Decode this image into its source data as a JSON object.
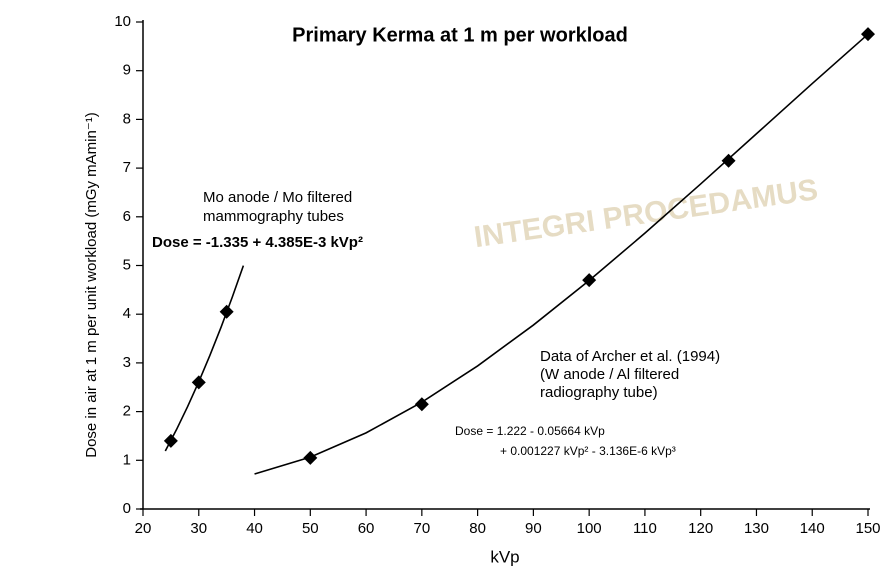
{
  "chart_data": {
    "type": "scatter",
    "title": "Primary Kerma at 1 m per workload",
    "x_label": "kVp",
    "y_label": "Dose in air at 1 m per unit workload (mGy mAmin⁻¹)",
    "watermark": "INTEGRI PROCEDAMUS",
    "xlim": [
      20,
      150
    ],
    "ylim": [
      0,
      10
    ],
    "xticks": [
      20,
      30,
      40,
      50,
      60,
      70,
      80,
      90,
      100,
      110,
      120,
      130,
      140,
      150
    ],
    "yticks": [
      0,
      1,
      2,
      3,
      4,
      5,
      6,
      7,
      8,
      9,
      10
    ],
    "color": "#000000",
    "series": [
      {
        "style": "points",
        "x": [
          25,
          30,
          35
        ],
        "values": [
          1.4,
          2.6,
          4.05
        ]
      },
      {
        "style": "points",
        "x": [
          50,
          70,
          100,
          125,
          150
        ],
        "values": [
          1.05,
          2.15,
          4.7,
          7.15,
          9.75
        ]
      },
      {
        "style": "line",
        "x": [
          24,
          26,
          28,
          30,
          32,
          34,
          36,
          38
        ],
        "values": [
          1.191,
          1.629,
          2.103,
          2.612,
          3.155,
          3.734,
          4.348,
          4.997
        ]
      },
      {
        "style": "line",
        "x": [
          40,
          50,
          60,
          70,
          80,
          90,
          100,
          110,
          120,
          130,
          140,
          150
        ],
        "values": [
          0.719,
          1.066,
          1.563,
          2.194,
          2.938,
          3.777,
          4.692,
          5.664,
          6.675,
          7.705,
          8.736,
          9.75
        ]
      }
    ],
    "annotations": [
      "Mo anode / Mo filtered",
      "mammography tubes",
      "Dose =  -1.335 + 4.385E-3 kVp²",
      "Data of Archer et al. (1994)",
      "(W anode / Al filtered",
      "radiography tube)",
      "Dose = 1.222 - 0.05664 kVp",
      "+ 0.001227 kVp² - 3.136E-6 kVp³"
    ]
  }
}
